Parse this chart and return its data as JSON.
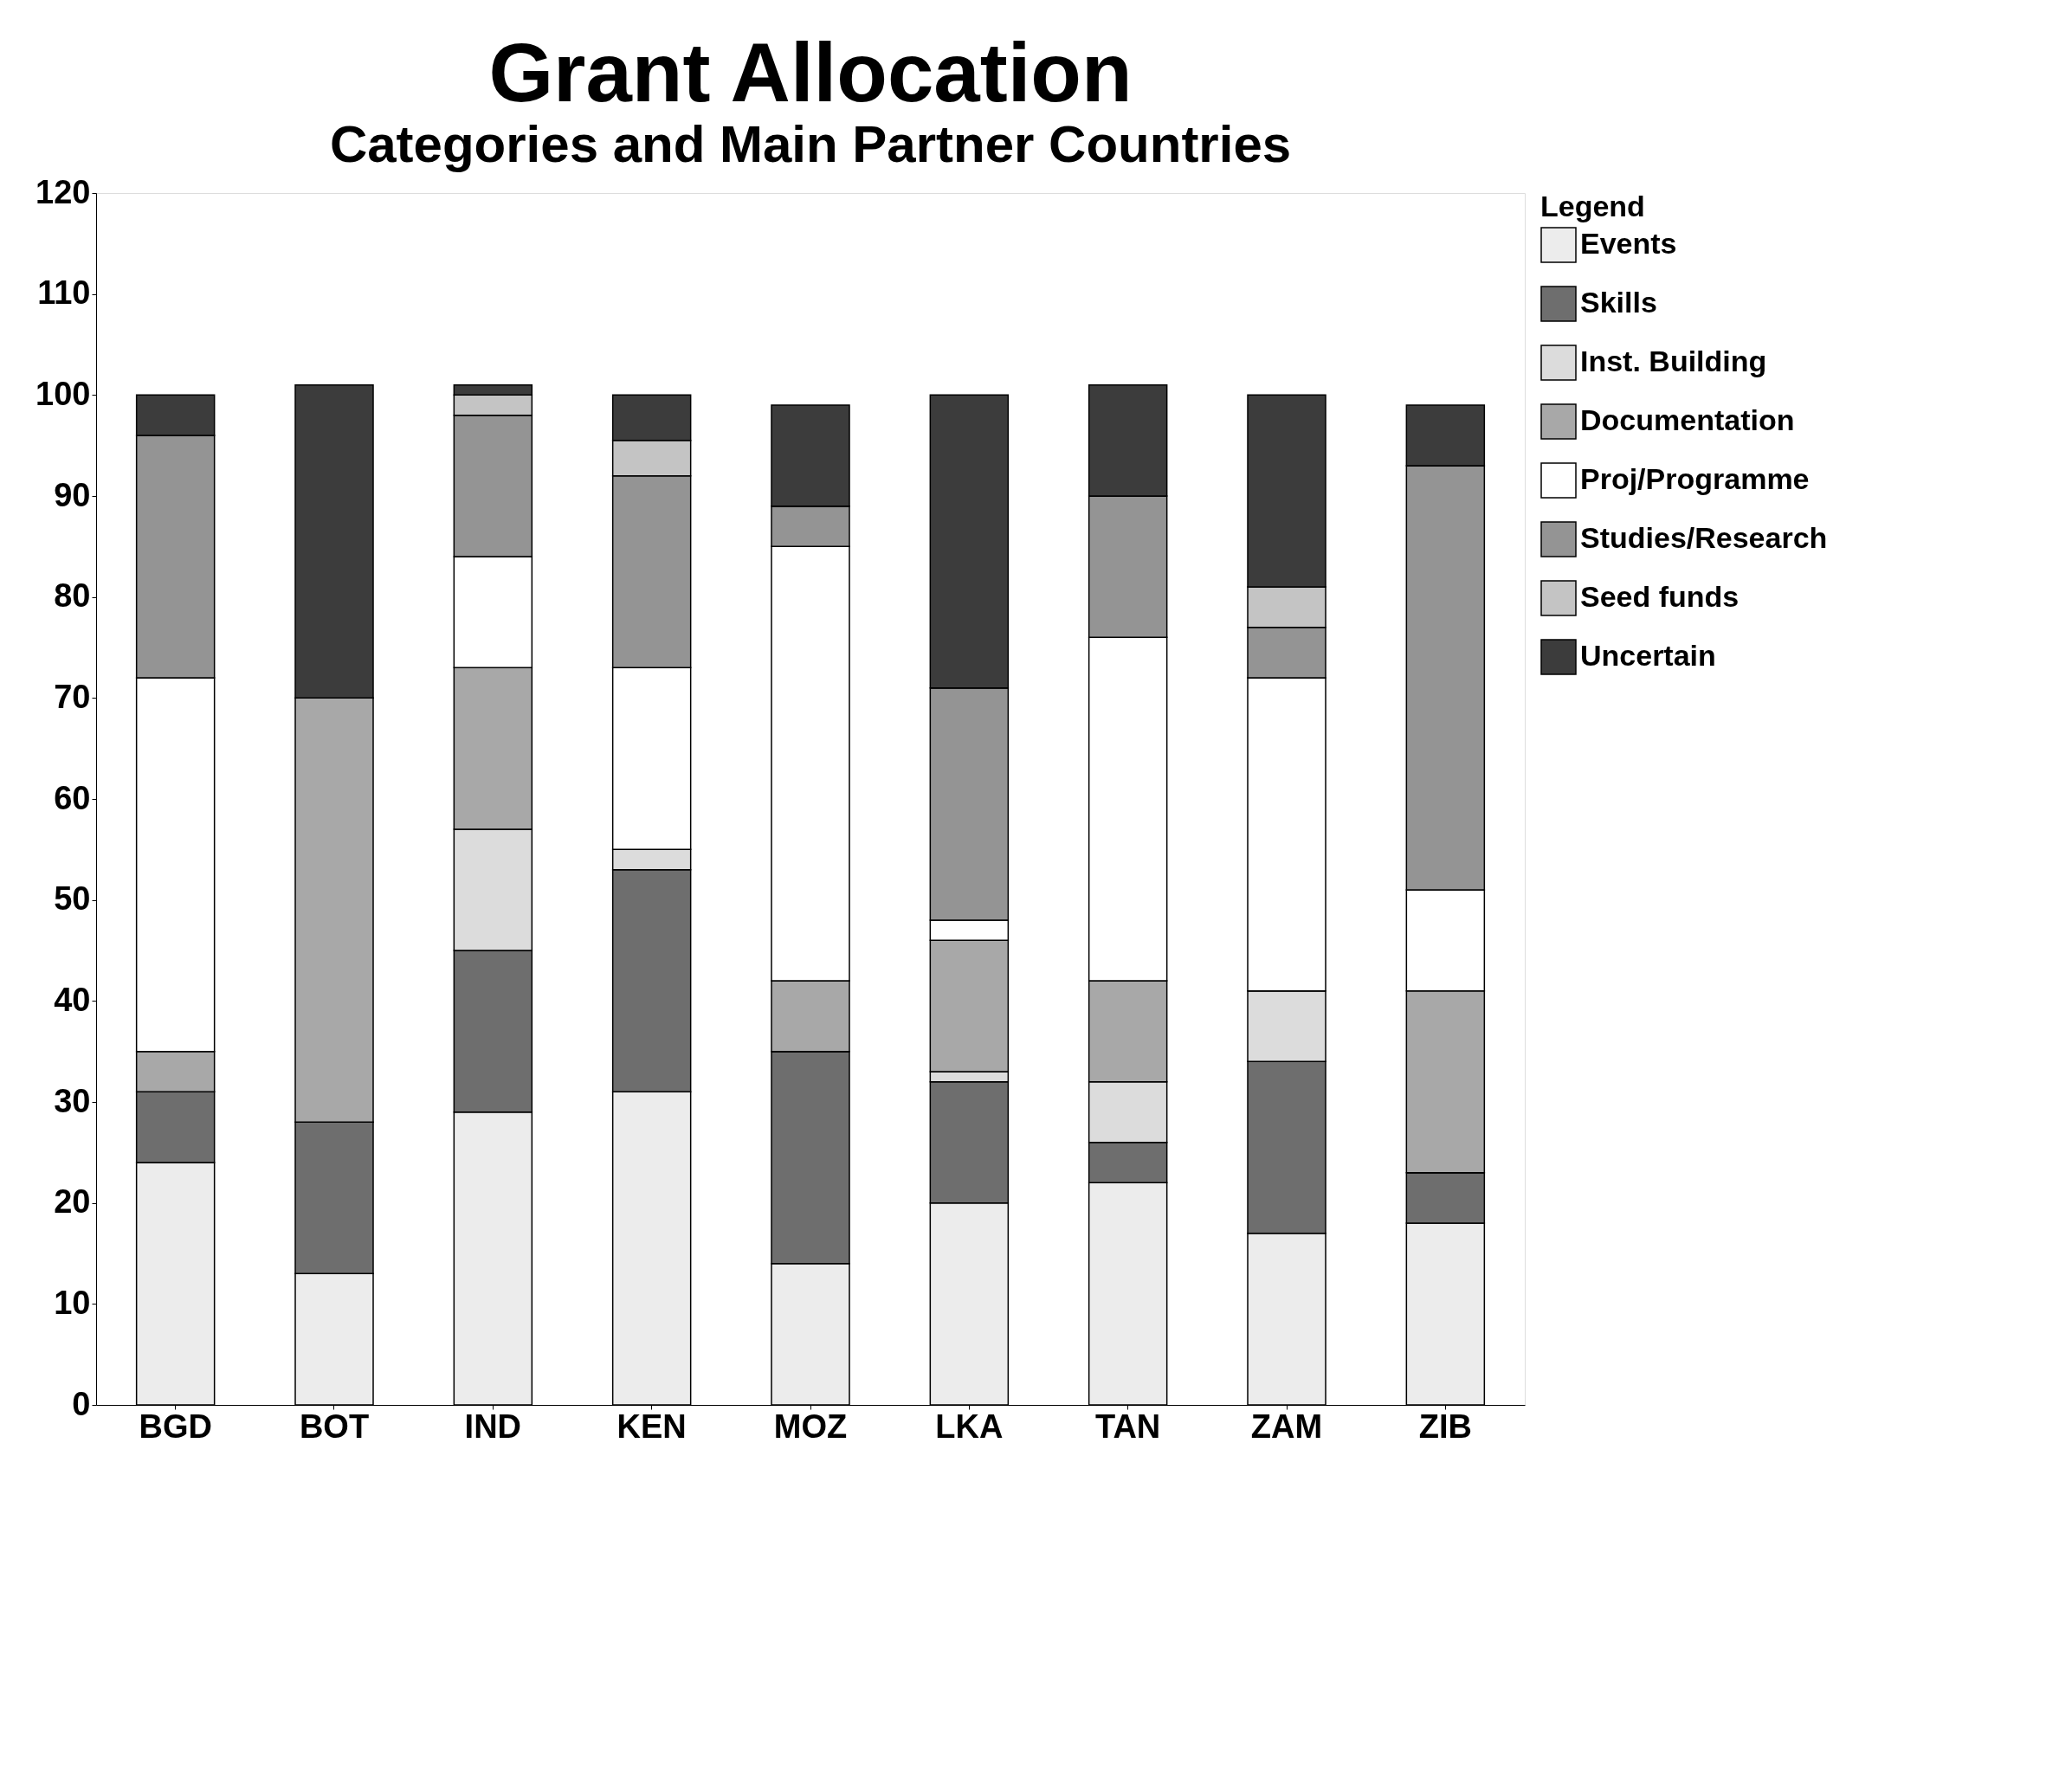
{
  "chart_data": {
    "type": "bar",
    "title": "Grant Allocation",
    "subtitle": "Categories and Main Partner Countries",
    "legend_title": "Legend",
    "stacked": true,
    "categories": [
      "BGD",
      "BOT",
      "IND",
      "KEN",
      "MOZ",
      "LKA",
      "TAN",
      "ZAM",
      "ZIB"
    ],
    "series": [
      {
        "name": "Events",
        "color": "#ececec",
        "values": [
          24,
          13,
          29,
          31,
          14,
          20,
          22,
          17,
          18
        ]
      },
      {
        "name": "Skills",
        "color": "#6e6e6e",
        "values": [
          7,
          15,
          16,
          22,
          21,
          12,
          4,
          17,
          5
        ]
      },
      {
        "name": "Inst. Building",
        "color": "#dcdcdc",
        "values": [
          0,
          0,
          12,
          2,
          0,
          1,
          6,
          7,
          0
        ]
      },
      {
        "name": "Documentation",
        "color": "#a8a8a8",
        "values": [
          4,
          42,
          16,
          0,
          7,
          13,
          10,
          0,
          18
        ]
      },
      {
        "name": "Proj/Programme",
        "color": "#ffffff",
        "values": [
          37,
          0,
          11,
          18,
          43,
          2,
          34,
          31,
          10
        ]
      },
      {
        "name": "Studies/Research",
        "color": "#949494",
        "values": [
          24,
          0,
          14,
          19,
          4,
          23,
          14,
          5,
          42
        ]
      },
      {
        "name": "Seed funds",
        "color": "#c4c4c4",
        "values": [
          0,
          0,
          2,
          3.5,
          0,
          0,
          0,
          4,
          0
        ]
      },
      {
        "name": "Uncertain",
        "color": "#3c3c3c",
        "values": [
          4,
          31,
          1,
          4.5,
          10,
          29,
          11,
          19,
          6
        ]
      }
    ],
    "ylim": [
      0,
      120
    ],
    "yticks": [
      0,
      10,
      20,
      30,
      40,
      50,
      60,
      70,
      80,
      90,
      100,
      110,
      120
    ],
    "grid": false,
    "legend": "right"
  }
}
